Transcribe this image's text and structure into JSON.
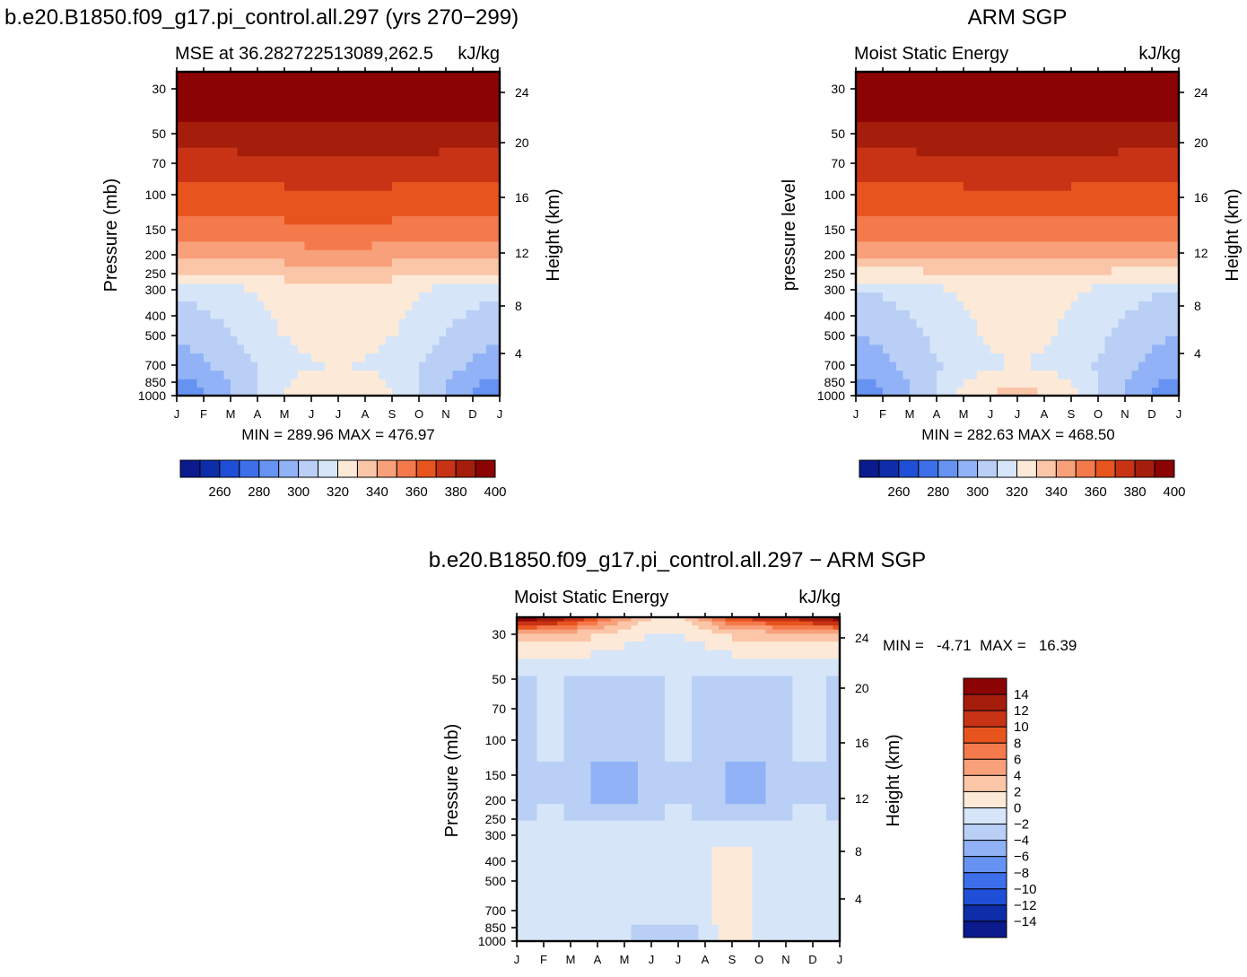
{
  "headers": {
    "left": "b.e20.B1850.f09_g17.pi_control.all.297 (yrs 270−299)",
    "right": "ARM SGP",
    "bottom": "b.e20.B1850.f09_g17.pi_control.all.297 − ARM SGP"
  },
  "colors": {
    "mse_levels": [
      "#0b1a8c",
      "#0d2ea8",
      "#1f4fd6",
      "#3d6fea",
      "#6693f2",
      "#91b2f6",
      "#b9cff6",
      "#d6e6f8",
      "#fde9d8",
      "#fbc6a8",
      "#f7a07a",
      "#f47a4b",
      "#e8541e",
      "#c83315",
      "#a51e0c",
      "#8b0303"
    ],
    "diff_levels": [
      "#0b1a8c",
      "#0d2ea8",
      "#1f4fd6",
      "#3d6fea",
      "#6693f2",
      "#91b2f6",
      "#b9cff6",
      "#d6e6f8",
      "#fde9d8",
      "#fbc6a8",
      "#f7a07a",
      "#f47a4b",
      "#e8541e",
      "#c83315",
      "#a51e0c",
      "#8b0303"
    ]
  },
  "chart_data": [
    {
      "type": "heatmap",
      "title": "MSE at 36.282722513089,262.5",
      "title_right": "kJ/kg",
      "ylabel": "Pressure (mb)",
      "ylabel_right": "Height (km)",
      "x": [
        "J",
        "F",
        "M",
        "A",
        "M",
        "J",
        "J",
        "A",
        "S",
        "O",
        "N",
        "D",
        "J"
      ],
      "pressure_ticks": [
        30,
        50,
        70,
        100,
        150,
        200,
        250,
        300,
        400,
        500,
        700,
        850,
        1000
      ],
      "height_ticks": [
        4,
        8,
        12,
        16,
        20,
        24
      ],
      "stats": "MIN = 289.96  MAX = 476.97",
      "colorbar_ticks": [
        "260",
        "280",
        "300",
        "320",
        "340",
        "360",
        "380",
        "400"
      ],
      "colorbar_levels": [
        250,
        260,
        270,
        280,
        290,
        300,
        310,
        320,
        330,
        340,
        350,
        360,
        370,
        380,
        390,
        400,
        410
      ],
      "profile_winter": [
        410,
        395,
        385,
        375,
        365,
        352,
        338,
        322,
        316,
        312,
        306,
        298,
        292
      ],
      "profile_summer": [
        410,
        398,
        388,
        378,
        368,
        356,
        344,
        338,
        336,
        335,
        330,
        336,
        340
      ]
    },
    {
      "type": "heatmap",
      "title": "Moist Static Energy",
      "title_right": "kJ/kg",
      "ylabel": "pressure level",
      "ylabel_right": "Height (km)",
      "x": [
        "J",
        "F",
        "M",
        "A",
        "M",
        "J",
        "J",
        "A",
        "S",
        "O",
        "N",
        "D",
        "J"
      ],
      "pressure_ticks": [
        30,
        50,
        70,
        100,
        150,
        200,
        250,
        300,
        400,
        500,
        700,
        850,
        1000
      ],
      "height_ticks": [
        4,
        8,
        12,
        16,
        20,
        24
      ],
      "stats": "MIN = 282.63  MAX = 468.50",
      "colorbar_ticks": [
        "260",
        "280",
        "300",
        "320",
        "340",
        "360",
        "380",
        "400"
      ],
      "colorbar_levels": [
        250,
        260,
        270,
        280,
        290,
        300,
        310,
        320,
        330,
        340,
        350,
        360,
        370,
        380,
        390,
        400,
        410
      ],
      "profile_winter": [
        410,
        395,
        385,
        375,
        365,
        352,
        336,
        320,
        314,
        310,
        304,
        298,
        292
      ],
      "profile_summer": [
        410,
        398,
        388,
        378,
        367,
        354,
        340,
        334,
        333,
        332,
        330,
        337,
        344
      ]
    },
    {
      "type": "heatmap",
      "title": "Moist Static Energy",
      "title_right": "kJ/kg",
      "ylabel": "Pressure (mb)",
      "ylabel_right": "Height (km)",
      "x": [
        "J",
        "F",
        "M",
        "A",
        "M",
        "J",
        "J",
        "A",
        "S",
        "O",
        "N",
        "D",
        "J"
      ],
      "pressure_ticks": [
        30,
        50,
        70,
        100,
        150,
        200,
        250,
        300,
        400,
        500,
        700,
        850,
        1000
      ],
      "height_ticks": [
        4,
        8,
        12,
        16,
        20,
        24
      ],
      "stats": "MIN =   -4.71  MAX =   16.39",
      "colorbar_ticks": [
        "14",
        "12",
        "10",
        "8",
        "6",
        "4",
        "2",
        "0",
        "−2",
        "−4",
        "−6",
        "−8",
        "−10",
        "−12",
        "−14"
      ],
      "colorbar_levels": [
        -16,
        -14,
        -12,
        -10,
        -8,
        -6,
        -4,
        -2,
        0,
        2,
        4,
        6,
        8,
        10,
        12,
        14,
        16
      ]
    }
  ]
}
